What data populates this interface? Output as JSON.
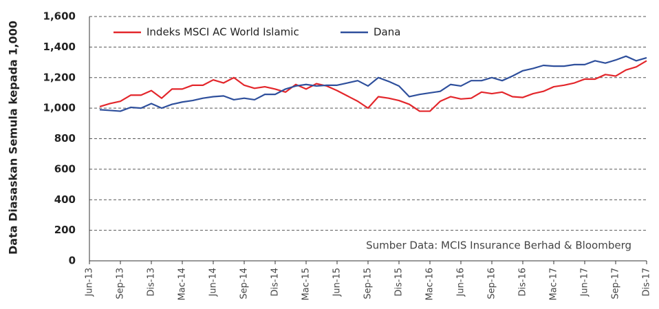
{
  "chart_data": {
    "type": "line",
    "y_label": "Data Diasaskan Semula kepada 1,000",
    "annotation": "Sumber Data: MCIS Insurance Berhad & Bloomberg",
    "categories": [
      "Jun-13",
      null,
      null,
      "Sep-13",
      null,
      null,
      "Dis-13",
      null,
      null,
      "Mac-14",
      null,
      null,
      "Jun-14",
      null,
      null,
      "Sep-14",
      null,
      null,
      "Dis-14",
      null,
      null,
      "Mac-15",
      null,
      null,
      "Jun-15",
      null,
      null,
      "Sep-15",
      null,
      null,
      "Dis-15",
      null,
      null,
      "Mac-16",
      null,
      null,
      "Jun-16",
      null,
      null,
      "Sep-16",
      null,
      null,
      "Dis-16",
      null,
      null,
      "Mac-17",
      null,
      null,
      "Jun-17",
      null,
      null,
      "Sep-17",
      null,
      null,
      "Dis-17"
    ],
    "series": [
      {
        "name": "Indeks MSCI AC World Islamic",
        "color": "#e3262b",
        "values": [
          null,
          1010,
          1030,
          1045,
          1085,
          1085,
          1115,
          1065,
          1125,
          1125,
          1150,
          1150,
          1185,
          1165,
          1200,
          1150,
          1130,
          1140,
          1125,
          1105,
          1155,
          1125,
          1160,
          1145,
          1115,
          1080,
          1045,
          1000,
          1075,
          1065,
          1050,
          1025,
          980,
          980,
          1045,
          1075,
          1060,
          1065,
          1105,
          1095,
          1105,
          1075,
          1070,
          1095,
          1110,
          1140,
          1150,
          1165,
          1190,
          1190,
          1220,
          1210,
          1250,
          1270,
          1310
        ]
      },
      {
        "name": "Dana",
        "color": "#2e4f9c",
        "values": [
          null,
          990,
          985,
          980,
          1005,
          1000,
          1030,
          1000,
          1025,
          1040,
          1050,
          1065,
          1075,
          1080,
          1055,
          1065,
          1055,
          1090,
          1090,
          1125,
          1145,
          1155,
          1145,
          1150,
          1150,
          1165,
          1180,
          1145,
          1200,
          1175,
          1145,
          1075,
          1090,
          1100,
          1110,
          1155,
          1145,
          1180,
          1180,
          1200,
          1180,
          1210,
          1245,
          1260,
          1280,
          1275,
          1275,
          1285,
          1285,
          1310,
          1295,
          1315,
          1340,
          1310,
          1330
        ]
      }
    ],
    "ylim": [
      0,
      1600
    ],
    "yticks": [
      0,
      200,
      400,
      600,
      800,
      {
        "value": 1000,
        "label": "1,000"
      },
      {
        "value": 1200,
        "label": "1,200"
      },
      {
        "value": 1400,
        "label": "1,400"
      },
      {
        "value": 1600,
        "label": "1,600"
      }
    ],
    "grid": true
  }
}
